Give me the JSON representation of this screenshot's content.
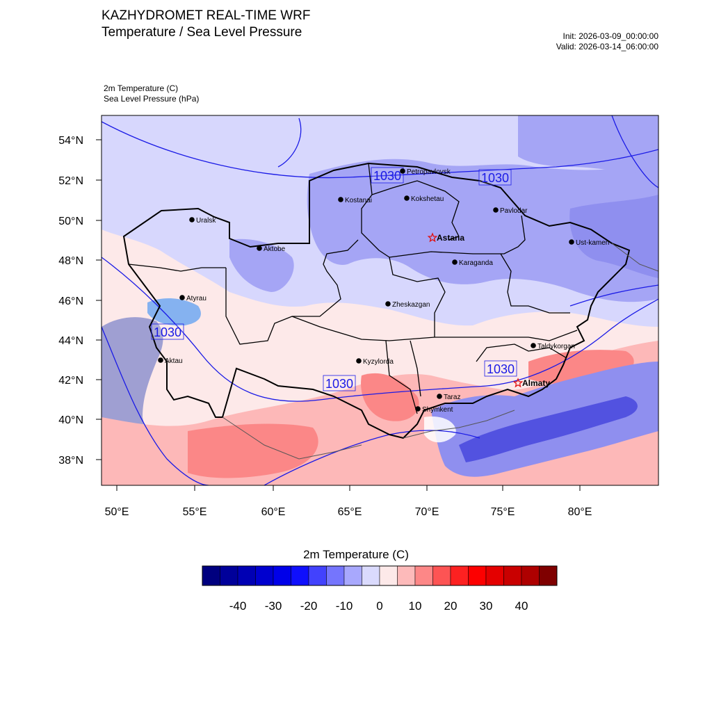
{
  "header": {
    "title": "KAZHYDROMET REAL-TIME WRF",
    "subtitle": "Temperature / Sea Level Pressure",
    "init": "Init: 2026-03-09_00:00:00",
    "valid": "Valid: 2026-03-14_06:00:00",
    "field1": "2m Temperature   (C)",
    "field2": "Sea Level Pressure   (hPa)"
  },
  "map": {
    "lat_labels": [
      "54°N",
      "52°N",
      "50°N",
      "48°N",
      "46°N",
      "44°N",
      "42°N",
      "40°N",
      "38°N"
    ],
    "lon_labels": [
      "50°E",
      "55°E",
      "60°E",
      "65°E",
      "70°E",
      "75°E",
      "80°E"
    ],
    "isobar_labels": [
      "1030",
      "1030",
      "1030",
      "1030",
      "1030"
    ],
    "cities": [
      {
        "name": "Petropavlovsk",
        "capital": false
      },
      {
        "name": "Kostanai",
        "capital": false
      },
      {
        "name": "Kokshetau",
        "capital": false
      },
      {
        "name": "Pavlodar",
        "capital": false
      },
      {
        "name": "Uralsk",
        "capital": false
      },
      {
        "name": "Astana",
        "capital": true
      },
      {
        "name": "Aktobe",
        "capital": false
      },
      {
        "name": "Ust-kamen",
        "capital": false
      },
      {
        "name": "Karaganda",
        "capital": false
      },
      {
        "name": "Atyrau",
        "capital": false
      },
      {
        "name": "Zheskazgan",
        "capital": false
      },
      {
        "name": "Taldykorgan",
        "capital": false
      },
      {
        "name": "Aktau",
        "capital": false
      },
      {
        "name": "Kyzylorda",
        "capital": false
      },
      {
        "name": "Almaty",
        "capital": true
      },
      {
        "name": "Taraz",
        "capital": false
      },
      {
        "name": "Shymkent",
        "capital": false
      }
    ],
    "colors": {
      "ocean": "#9f9fd2",
      "warm": "#fdb8b8",
      "hot": "#fb8787",
      "mild": "#fde9e9",
      "cool": "#d7d7fd",
      "cold": "#a5a5f5",
      "contour": "#1a1ae6",
      "border": "#000000"
    }
  },
  "colorbar": {
    "title": "2m Temperature  (C)",
    "colors": [
      "#00007f",
      "#00009a",
      "#0000b4",
      "#0000cf",
      "#0000e9",
      "#0f0ffd",
      "#4242fd",
      "#7575fd",
      "#a8a8fd",
      "#dadafd",
      "#fde9e9",
      "#fdbaba",
      "#fd8787",
      "#fd5454",
      "#fd2121",
      "#fd0000",
      "#e40000",
      "#c90000",
      "#ae0000",
      "#7f0000"
    ],
    "ticks": [
      "-40",
      "-30",
      "-20",
      "-10",
      "0",
      "10",
      "20",
      "30",
      "40"
    ]
  }
}
